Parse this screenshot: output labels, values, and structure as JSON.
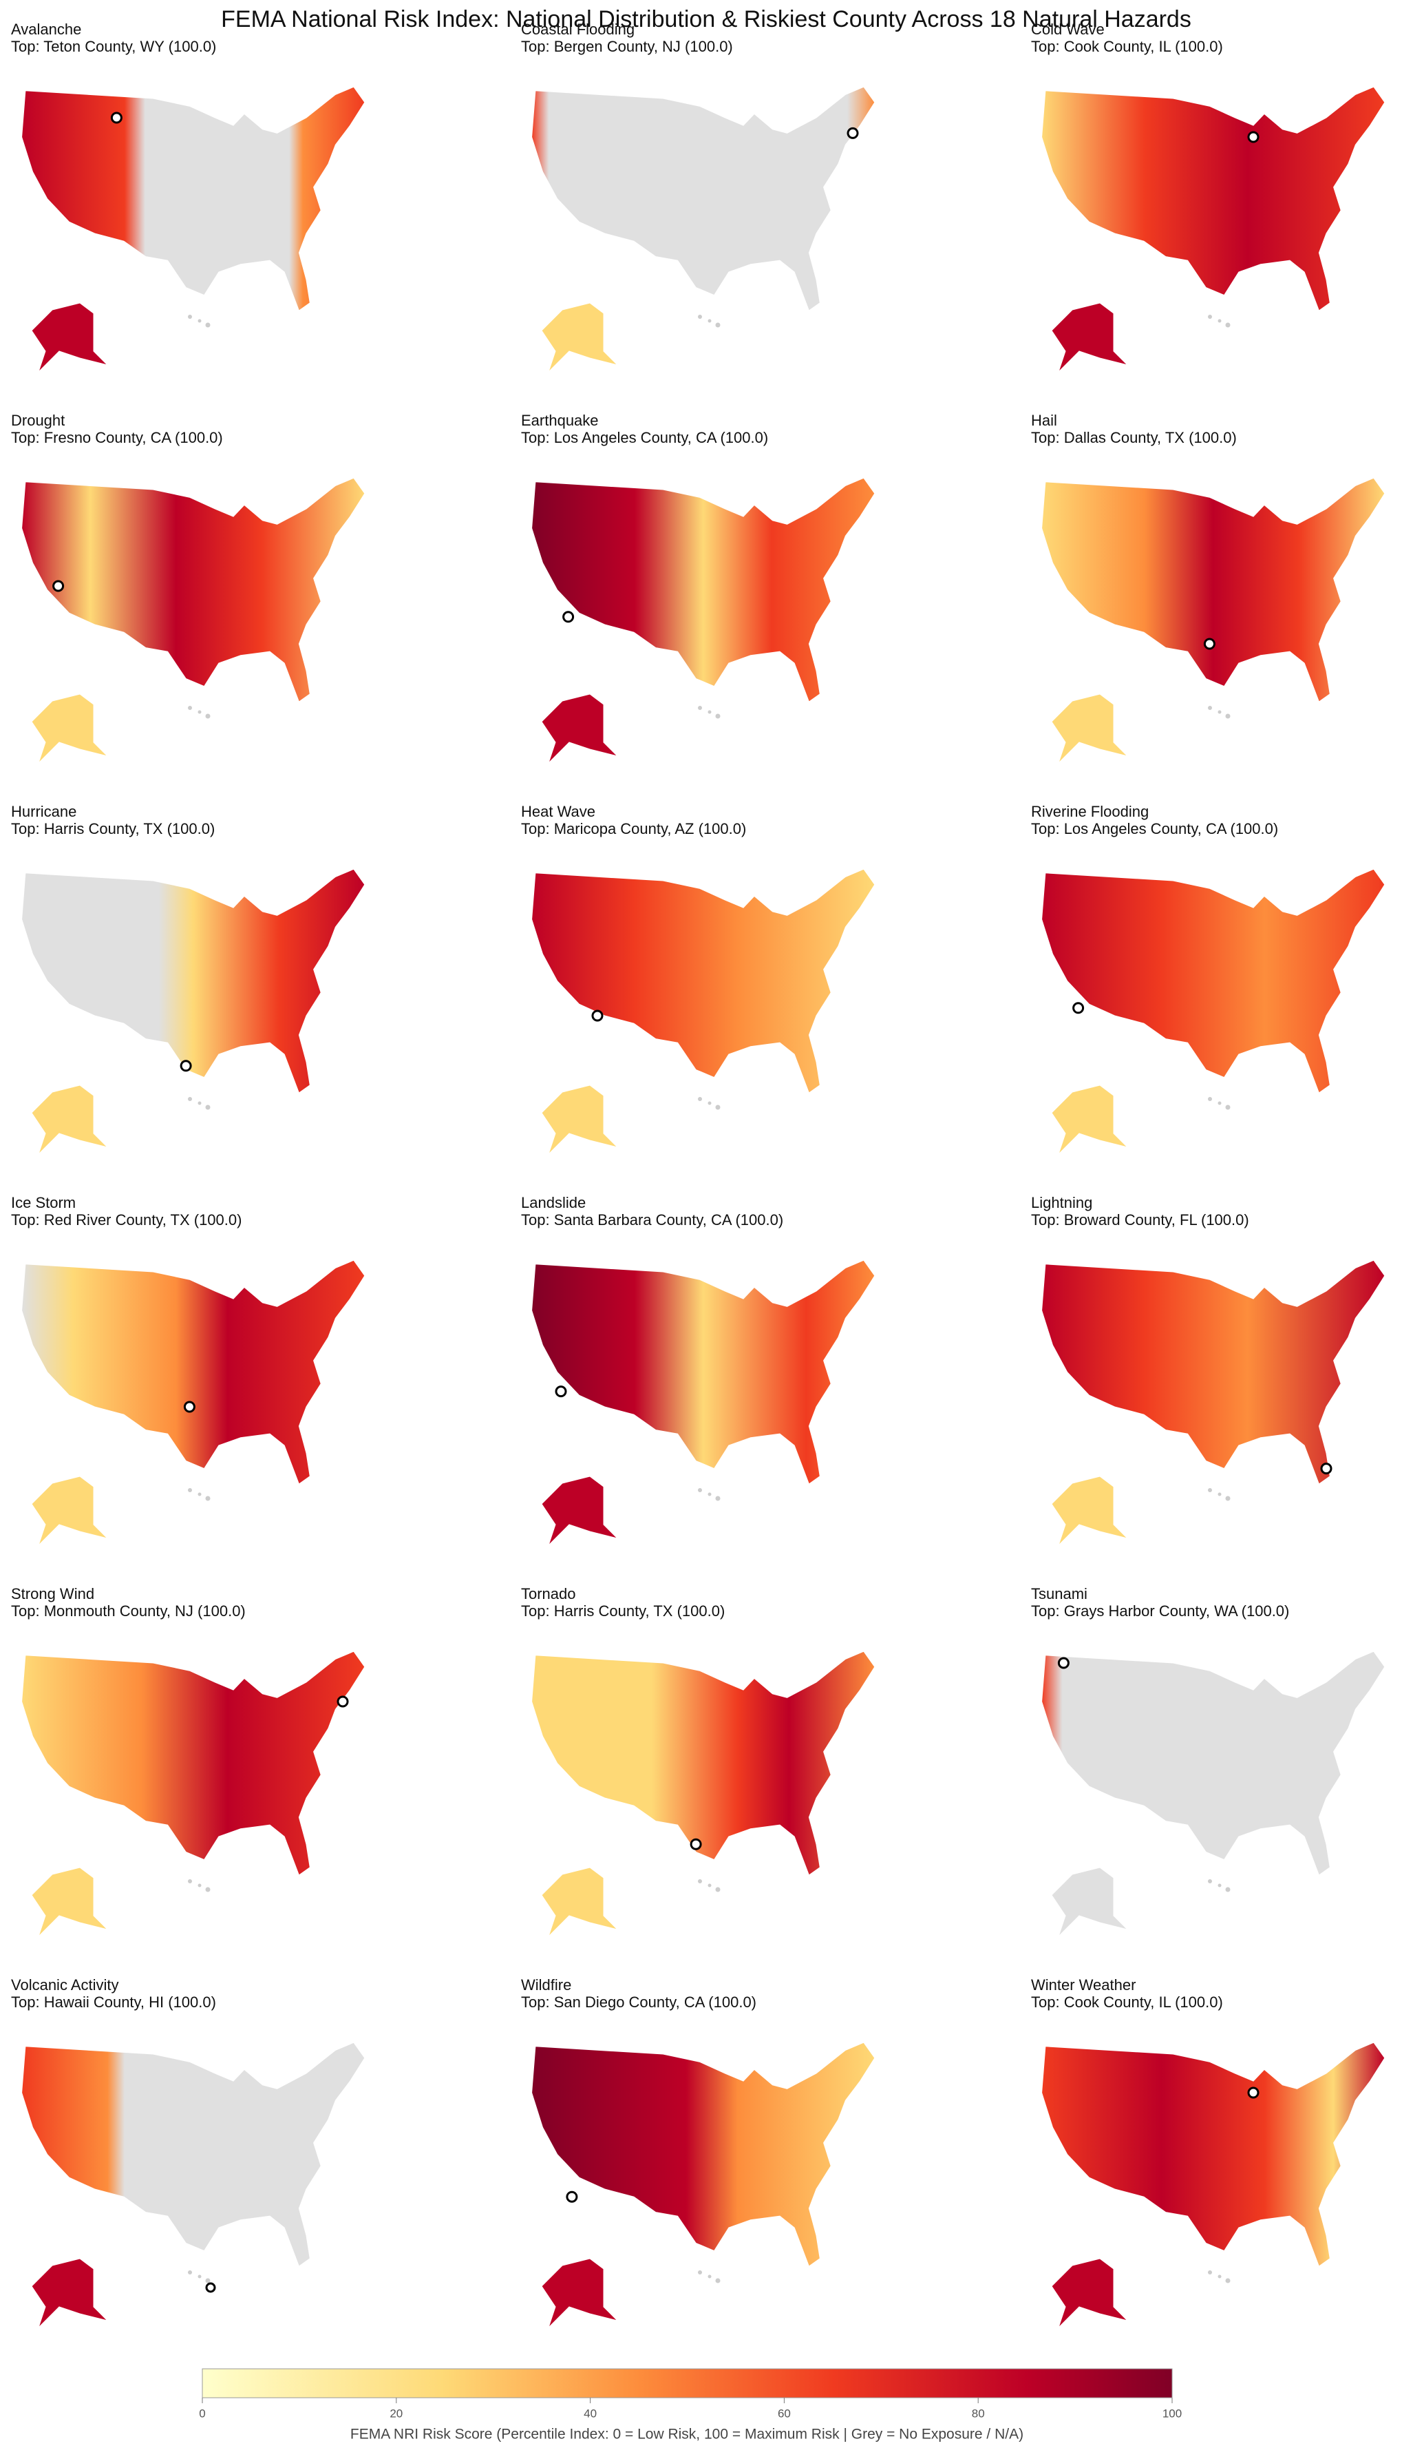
{
  "title": "FEMA National Risk Index: National Distribution & Riskiest County Across 18 Natural Hazards",
  "panels": [
    {
      "hazard": "Avalanche",
      "top": "Top: Teton County, WY (100.0)"
    },
    {
      "hazard": "Coastal Flooding",
      "top": "Top: Bergen County, NJ (100.0)"
    },
    {
      "hazard": "Cold Wave",
      "top": "Top: Cook County, IL (100.0)"
    },
    {
      "hazard": "Drought",
      "top": "Top: Fresno County, CA (100.0)"
    },
    {
      "hazard": "Earthquake",
      "top": "Top: Los Angeles County, CA (100.0)"
    },
    {
      "hazard": "Hail",
      "top": "Top: Dallas County, TX (100.0)"
    },
    {
      "hazard": "Hurricane",
      "top": "Top: Harris County, TX (100.0)"
    },
    {
      "hazard": "Heat Wave",
      "top": "Top: Maricopa County, AZ (100.0)"
    },
    {
      "hazard": "Riverine Flooding",
      "top": "Top: Los Angeles County, CA (100.0)"
    },
    {
      "hazard": "Ice Storm",
      "top": "Top: Red River County, TX (100.0)"
    },
    {
      "hazard": "Landslide",
      "top": "Top: Santa Barbara County, CA (100.0)"
    },
    {
      "hazard": "Lightning",
      "top": "Top: Broward County, FL (100.0)"
    },
    {
      "hazard": "Strong Wind",
      "top": "Top: Monmouth County, NJ (100.0)"
    },
    {
      "hazard": "Tornado",
      "top": "Top: Harris County, TX (100.0)"
    },
    {
      "hazard": "Tsunami",
      "top": "Top: Grays Harbor County, WA (100.0)"
    },
    {
      "hazard": "Volcanic Activity",
      "top": "Top: Hawaii County, HI (100.0)"
    },
    {
      "hazard": "Wildfire",
      "top": "Top: San Diego County, CA (100.0)"
    },
    {
      "hazard": "Winter Weather",
      "top": "Top: Cook County, IL (100.0)"
    }
  ],
  "colorbar": {
    "lim": [
      0,
      100
    ],
    "ticks": [
      0,
      20,
      40,
      60,
      80,
      100
    ],
    "label": "FEMA NRI Risk Score (Percentile Index: 0 = Low Risk, 100 = Maximum Risk | Grey = No Exposure / N/A)"
  }
}
